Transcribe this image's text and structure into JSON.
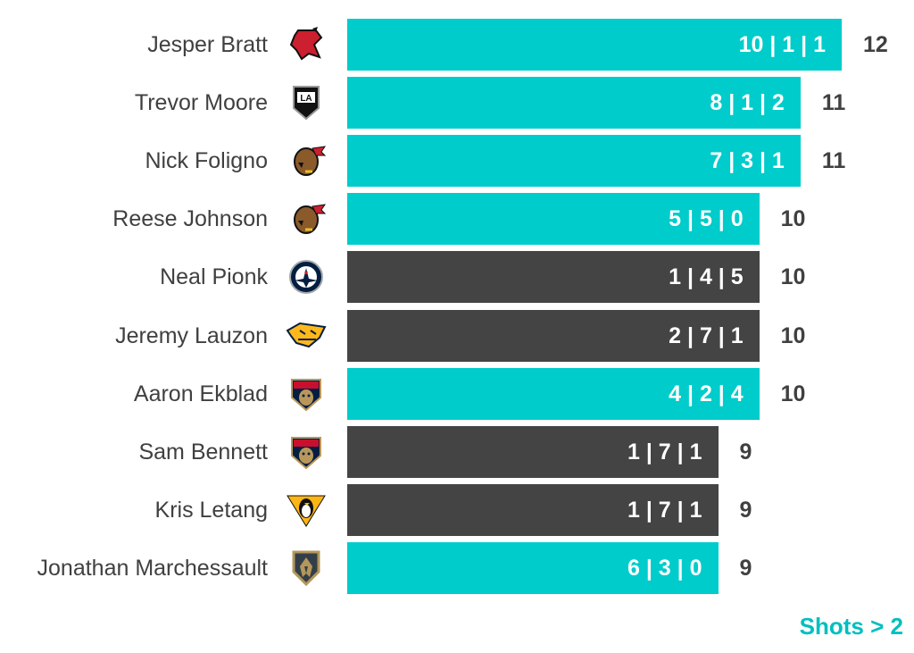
{
  "chart_data": {
    "type": "bar",
    "orientation": "horizontal",
    "categories": [
      "Jesper Bratt",
      "Trevor Moore",
      "Nick Foligno",
      "Reese Johnson",
      "Neal Pionk",
      "Jeremy Lauzon",
      "Aaron Ekblad",
      "Sam Bennett",
      "Kris Letang",
      "Jonathan Marchessault"
    ],
    "values": [
      12,
      11,
      11,
      10,
      10,
      10,
      10,
      9,
      9,
      9
    ],
    "bar_labels": [
      "10 | 1 | 1",
      "8 | 1 | 2",
      "7 | 3 | 1",
      "5 | 5 | 0",
      "1 | 4 | 5",
      "2 | 7 | 1",
      "4 | 2 | 4",
      "1 | 7 | 1",
      "1 | 7 | 1",
      "6 | 3 | 0"
    ],
    "highlight": [
      true,
      true,
      true,
      true,
      false,
      false,
      true,
      false,
      false,
      true
    ],
    "team_logos": [
      "devils-logo",
      "kings-logo",
      "blackhawks-logo",
      "blackhawks-logo",
      "jets-logo",
      "predators-logo",
      "panthers-logo",
      "panthers-logo",
      "penguins-logo",
      "golden-knights-logo"
    ],
    "xlim": [
      0,
      12
    ],
    "footer_label": "Shots > 2",
    "colors": {
      "highlight": "#00cccc",
      "default": "#444444",
      "footer": "#00bfbf",
      "text": "#404040"
    }
  }
}
